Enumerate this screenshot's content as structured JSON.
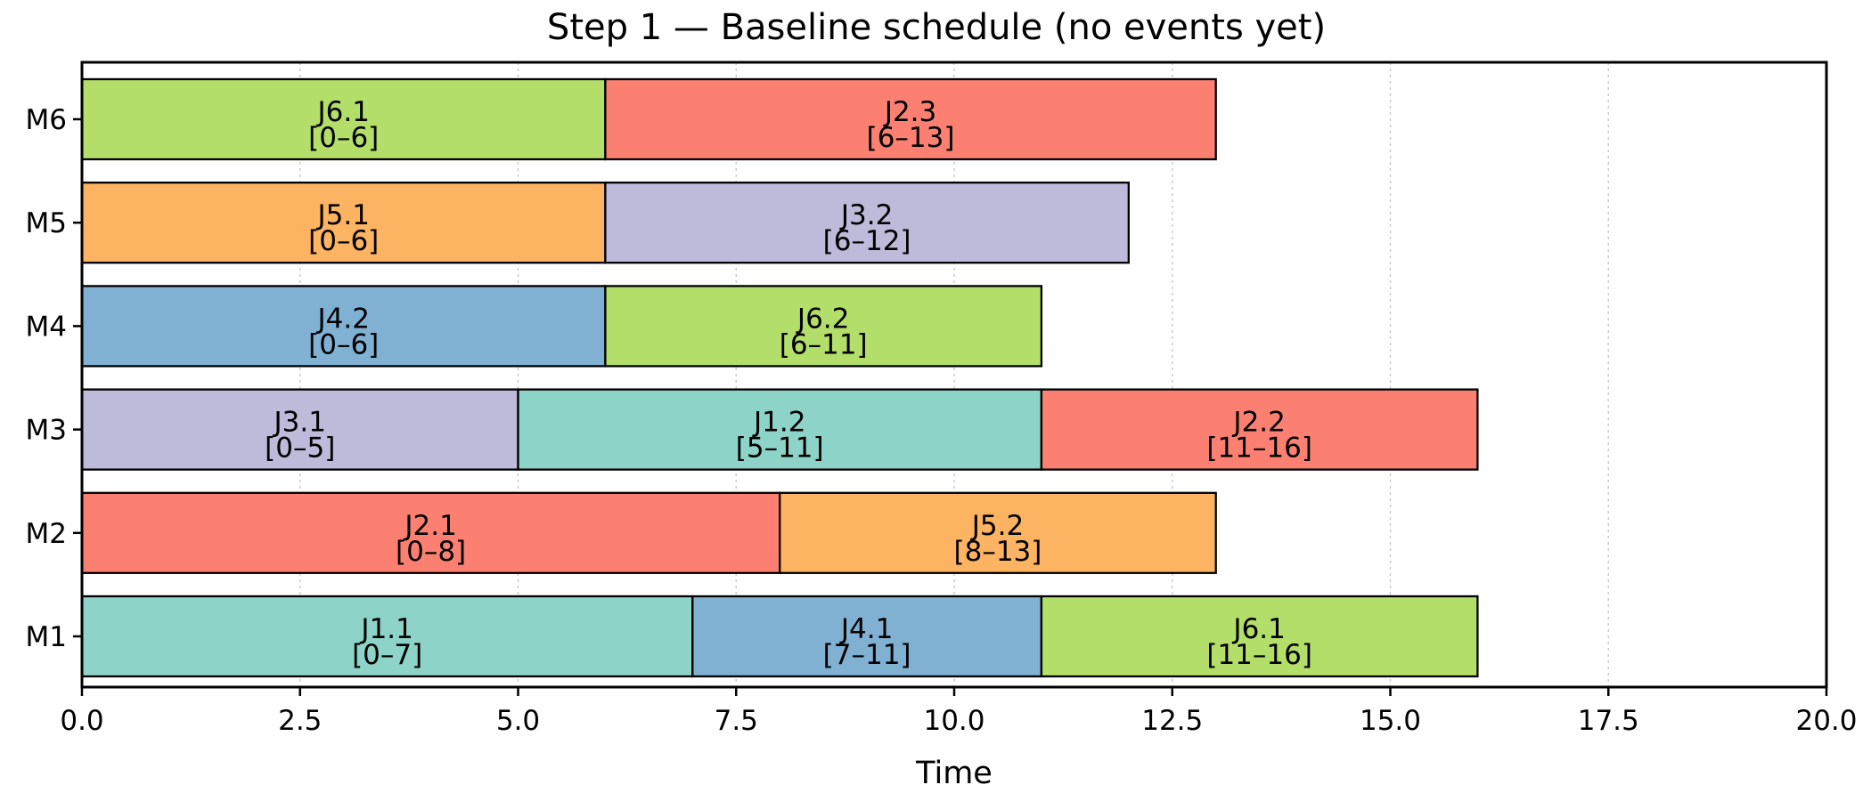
{
  "chart_data": {
    "type": "gantt",
    "title": "Step 1 — Baseline schedule (no events yet)",
    "xlabel": "Time",
    "ylabel": "",
    "xlim": [
      0,
      20
    ],
    "x_ticks": [
      "0.0",
      "2.5",
      "5.0",
      "7.5",
      "10.0",
      "12.5",
      "15.0",
      "17.5",
      "20.0"
    ],
    "x_tick_values": [
      0,
      2.5,
      5,
      7.5,
      10,
      12.5,
      15,
      17.5,
      20
    ],
    "rows": [
      "M1",
      "M2",
      "M3",
      "M4",
      "M5",
      "M6"
    ],
    "grid": "vertical dotted",
    "colors": {
      "J1": "#8dd3c7",
      "J2": "#fb8072",
      "J3": "#bebada",
      "J4": "#80b1d3",
      "J5": "#fdb462",
      "J6": "#b3de69"
    },
    "tasks": [
      {
        "machine": "M1",
        "job": "J1",
        "op": "J1.1",
        "start": 0,
        "end": 7,
        "range": "[0–7]"
      },
      {
        "machine": "M1",
        "job": "J4",
        "op": "J4.1",
        "start": 7,
        "end": 11,
        "range": "[7–11]"
      },
      {
        "machine": "M1",
        "job": "J6",
        "op": "J6.1",
        "start": 11,
        "end": 16,
        "range": "[11–16]"
      },
      {
        "machine": "M2",
        "job": "J2",
        "op": "J2.1",
        "start": 0,
        "end": 8,
        "range": "[0–8]"
      },
      {
        "machine": "M2",
        "job": "J5",
        "op": "J5.2",
        "start": 8,
        "end": 13,
        "range": "[8–13]"
      },
      {
        "machine": "M3",
        "job": "J3",
        "op": "J3.1",
        "start": 0,
        "end": 5,
        "range": "[0–5]"
      },
      {
        "machine": "M3",
        "job": "J1",
        "op": "J1.2",
        "start": 5,
        "end": 11,
        "range": "[5–11]"
      },
      {
        "machine": "M3",
        "job": "J2",
        "op": "J2.2",
        "start": 11,
        "end": 16,
        "range": "[11–16]"
      },
      {
        "machine": "M4",
        "job": "J4",
        "op": "J4.2",
        "start": 0,
        "end": 6,
        "range": "[0–6]"
      },
      {
        "machine": "M4",
        "job": "J6",
        "op": "J6.2",
        "start": 6,
        "end": 11,
        "range": "[6–11]"
      },
      {
        "machine": "M5",
        "job": "J5",
        "op": "J5.1",
        "start": 0,
        "end": 6,
        "range": "[0–6]"
      },
      {
        "machine": "M5",
        "job": "J3",
        "op": "J3.2",
        "start": 6,
        "end": 12,
        "range": "[6–12]"
      },
      {
        "machine": "M6",
        "job": "J6",
        "op": "J6.1",
        "start": 0,
        "end": 6,
        "range": "[0–6]"
      },
      {
        "machine": "M6",
        "job": "J2",
        "op": "J2.3",
        "start": 6,
        "end": 13,
        "range": "[6–13]"
      }
    ]
  }
}
